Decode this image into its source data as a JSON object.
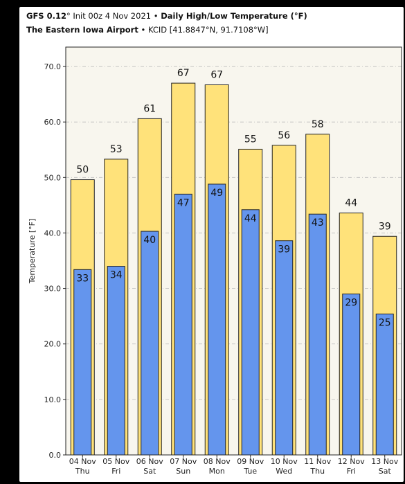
{
  "header": {
    "line1_model": "GFS 0.12",
    "line1_deg": "°",
    "line1_init": " Init 00z 4 Nov 2021",
    "line1_sep": " • ",
    "line1_title": "Daily High/Low Temperature (°F)",
    "line2_station": "The Eastern Iowa Airport",
    "line2_sep": " • ",
    "line2_coords": "KCID [41.8847°N, 91.7108°W]"
  },
  "chart_data": {
    "type": "bar",
    "categories": [
      "04 Nov",
      "05 Nov",
      "06 Nov",
      "07 Nov",
      "08 Nov",
      "09 Nov",
      "10 Nov",
      "11 Nov",
      "12 Nov",
      "13 Nov"
    ],
    "days": [
      "Thu",
      "Fri",
      "Sat",
      "Sun",
      "Mon",
      "Tue",
      "Wed",
      "Thu",
      "Fri",
      "Sat"
    ],
    "series": [
      {
        "name": "High",
        "color": "#ffe27a",
        "values": [
          49.6,
          53.3,
          60.6,
          67.0,
          66.7,
          55.1,
          55.8,
          57.8,
          43.6,
          39.4
        ],
        "labels": [
          "50",
          "53",
          "61",
          "67",
          "67",
          "55",
          "56",
          "58",
          "44",
          "39"
        ]
      },
      {
        "name": "Low",
        "color": "#6495ed",
        "values": [
          33.4,
          34.0,
          40.3,
          47.0,
          48.8,
          44.2,
          38.6,
          43.4,
          29.0,
          25.4
        ],
        "labels": [
          "33",
          "34",
          "40",
          "47",
          "49",
          "44",
          "39",
          "43",
          "29",
          "25"
        ]
      }
    ],
    "ylabel": "Temperature [°F]",
    "ylim": [
      0,
      73.5
    ],
    "yticks": [
      "0.0",
      "10.0",
      "20.0",
      "30.0",
      "40.0",
      "50.0",
      "60.0",
      "70.0"
    ],
    "grid": true,
    "plot_bg": "#f8f6ee"
  }
}
